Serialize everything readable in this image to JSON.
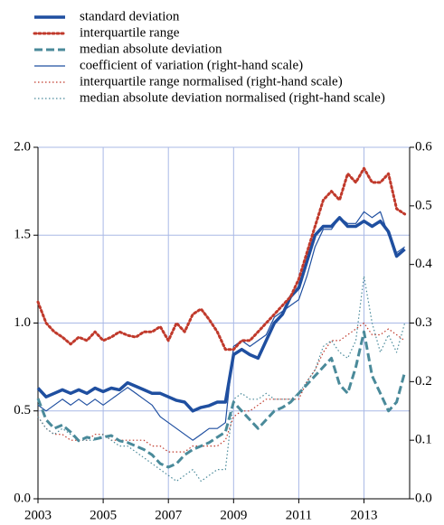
{
  "chart_data": {
    "type": "line",
    "x": [
      2003,
      2003.25,
      2003.5,
      2003.75,
      2004,
      2004.25,
      2004.5,
      2004.75,
      2005,
      2005.25,
      2005.5,
      2005.75,
      2006,
      2006.25,
      2006.5,
      2006.75,
      2007,
      2007.25,
      2007.5,
      2007.75,
      2008,
      2008.25,
      2008.5,
      2008.75,
      2009,
      2009.25,
      2009.5,
      2009.75,
      2010,
      2010.25,
      2010.5,
      2010.75,
      2011,
      2011.25,
      2011.5,
      2011.75,
      2012,
      2012.25,
      2012.5,
      2012.75,
      2013,
      2013.25,
      2013.5,
      2013.75,
      2014,
      2014.25
    ],
    "xlim": [
      2003,
      2014.4
    ],
    "xticks": [
      2003,
      2005,
      2007,
      2009,
      2011,
      2013
    ],
    "ylim": [
      0,
      2
    ],
    "yticks": [
      {
        "value": 0,
        "label": "0.0"
      },
      0.5,
      {
        "value": 1,
        "label": "1.0"
      },
      1.5,
      {
        "value": 2,
        "label": "2.0"
      }
    ],
    "y2lim": [
      0,
      0.6
    ],
    "y2ticks": [
      {
        "value": 0,
        "label": "0.0"
      },
      0.1,
      0.2,
      0.3,
      0.4,
      0.5,
      0.6
    ],
    "grid": true,
    "legend": "top-left",
    "series": [
      {
        "name": "standard deviation",
        "color": "#1f4fa0",
        "style": "solid",
        "weight": "thick",
        "values": [
          0.63,
          0.58,
          0.6,
          0.62,
          0.6,
          0.62,
          0.6,
          0.63,
          0.61,
          0.63,
          0.62,
          0.66,
          0.64,
          0.62,
          0.6,
          0.6,
          0.58,
          0.56,
          0.55,
          0.5,
          0.52,
          0.53,
          0.55,
          0.55,
          0.82,
          0.85,
          0.82,
          0.8,
          0.9,
          1.0,
          1.05,
          1.15,
          1.2,
          1.35,
          1.5,
          1.55,
          1.55,
          1.6,
          1.55,
          1.55,
          1.58,
          1.55,
          1.58,
          1.52,
          1.38,
          1.42
        ]
      },
      {
        "name": "interquartile range",
        "color": "#c0392b",
        "style": "dotted",
        "weight": "thick",
        "values": [
          1.12,
          1.0,
          0.95,
          0.92,
          0.88,
          0.92,
          0.9,
          0.95,
          0.9,
          0.92,
          0.95,
          0.93,
          0.92,
          0.95,
          0.95,
          0.98,
          0.9,
          1.0,
          0.95,
          1.05,
          1.08,
          1.02,
          0.95,
          0.85,
          0.85,
          0.9,
          0.9,
          0.95,
          1.0,
          1.05,
          1.1,
          1.15,
          1.25,
          1.4,
          1.55,
          1.7,
          1.75,
          1.7,
          1.85,
          1.8,
          1.88,
          1.8,
          1.8,
          1.85,
          1.65,
          1.62
        ]
      },
      {
        "name": "median absolute deviation",
        "color": "#4a8a9a",
        "style": "dashed",
        "weight": "thick",
        "values": [
          0.57,
          0.45,
          0.4,
          0.42,
          0.38,
          0.33,
          0.35,
          0.34,
          0.35,
          0.36,
          0.33,
          0.32,
          0.3,
          0.28,
          0.25,
          0.2,
          0.18,
          0.2,
          0.25,
          0.28,
          0.3,
          0.32,
          0.35,
          0.38,
          0.55,
          0.5,
          0.45,
          0.4,
          0.45,
          0.5,
          0.52,
          0.55,
          0.6,
          0.65,
          0.7,
          0.75,
          0.8,
          0.65,
          0.6,
          0.75,
          0.95,
          0.7,
          0.6,
          0.5,
          0.55,
          0.72
        ]
      },
      {
        "name": "coefficient of variation (right-hand scale)",
        "color": "#1f4fa0",
        "style": "solid",
        "weight": "thin",
        "axis": "y2",
        "values": [
          0.16,
          0.15,
          0.16,
          0.17,
          0.16,
          0.17,
          0.16,
          0.17,
          0.16,
          0.17,
          0.18,
          0.19,
          0.18,
          0.17,
          0.16,
          0.14,
          0.13,
          0.12,
          0.11,
          0.1,
          0.11,
          0.12,
          0.12,
          0.13,
          0.26,
          0.27,
          0.26,
          0.27,
          0.28,
          0.31,
          0.32,
          0.33,
          0.34,
          0.38,
          0.43,
          0.46,
          0.46,
          0.48,
          0.47,
          0.47,
          0.49,
          0.48,
          0.49,
          0.45,
          0.42,
          0.43
        ]
      },
      {
        "name": "interquartile range normalised (right-hand scale)",
        "color": "#c0392b",
        "style": "dotted",
        "weight": "thin",
        "axis": "y2",
        "values": [
          0.14,
          0.12,
          0.11,
          0.11,
          0.1,
          0.1,
          0.1,
          0.11,
          0.11,
          0.1,
          0.1,
          0.1,
          0.1,
          0.1,
          0.09,
          0.09,
          0.08,
          0.08,
          0.08,
          0.09,
          0.09,
          0.09,
          0.09,
          0.1,
          0.14,
          0.15,
          0.15,
          0.16,
          0.17,
          0.17,
          0.17,
          0.17,
          0.17,
          0.2,
          0.22,
          0.25,
          0.27,
          0.27,
          0.28,
          0.29,
          0.3,
          0.28,
          0.28,
          0.29,
          0.28,
          0.27
        ]
      },
      {
        "name": "median absolute deviation normalised (right-hand scale)",
        "color": "#4a8a9a",
        "style": "dotted",
        "weight": "thin",
        "axis": "y2",
        "values": [
          0.14,
          0.12,
          0.11,
          0.12,
          0.11,
          0.1,
          0.1,
          0.1,
          0.11,
          0.1,
          0.09,
          0.09,
          0.08,
          0.07,
          0.06,
          0.05,
          0.04,
          0.03,
          0.04,
          0.05,
          0.03,
          0.04,
          0.05,
          0.05,
          0.17,
          0.18,
          0.17,
          0.17,
          0.18,
          0.17,
          0.17,
          0.17,
          0.18,
          0.2,
          0.22,
          0.26,
          0.27,
          0.25,
          0.24,
          0.27,
          0.38,
          0.3,
          0.25,
          0.28,
          0.25,
          0.3
        ]
      }
    ]
  }
}
